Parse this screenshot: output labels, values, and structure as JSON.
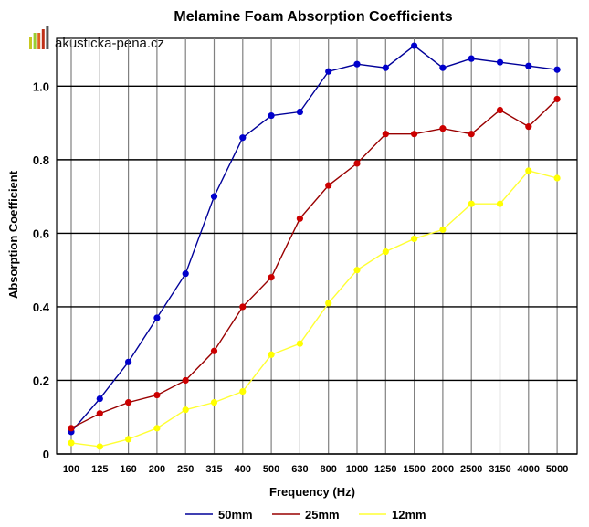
{
  "logo": {
    "text": "akusticka-pena.cz",
    "bar_colors": [
      "#c8c820",
      "#9acd32",
      "#e06020",
      "#c03018",
      "#555555"
    ]
  },
  "chart_data": {
    "type": "line",
    "title": "Melamine Foam Absorption Coefficients",
    "xlabel": "Frequency (Hz)",
    "ylabel": "Absorption Coefficient",
    "categories": [
      "100",
      "125",
      "160",
      "200",
      "250",
      "315",
      "400",
      "500",
      "630",
      "800",
      "1000",
      "1250",
      "1500",
      "2000",
      "2500",
      "3150",
      "4000",
      "5000"
    ],
    "ylim": [
      0,
      1.13
    ],
    "yticks": [
      0,
      0.2,
      0.4,
      0.6,
      0.8,
      1.0
    ],
    "ytick_labels": [
      "0",
      "0.2",
      "0.4",
      "0.6",
      "0.8",
      "1.0"
    ],
    "grid": true,
    "legend_position": "bottom",
    "series": [
      {
        "name": "50mm",
        "color": "#000099",
        "marker": "#0000cc",
        "values": [
          0.06,
          0.15,
          0.25,
          0.37,
          0.49,
          0.7,
          0.86,
          0.92,
          0.93,
          1.04,
          1.06,
          1.05,
          1.11,
          1.05,
          1.075,
          1.065,
          1.055,
          1.045
        ]
      },
      {
        "name": "25mm",
        "color": "#990000",
        "marker": "#cc0000",
        "values": [
          0.07,
          0.11,
          0.14,
          0.16,
          0.2,
          0.28,
          0.4,
          0.48,
          0.64,
          0.73,
          0.79,
          0.87,
          0.87,
          0.885,
          0.87,
          0.935,
          0.89,
          0.965
        ]
      },
      {
        "name": "12mm",
        "color": "#ffff33",
        "marker": "#ffff00",
        "values": [
          0.03,
          0.02,
          0.04,
          0.07,
          0.12,
          0.14,
          0.17,
          0.27,
          0.3,
          0.41,
          0.5,
          0.55,
          0.585,
          0.61,
          0.68,
          0.68,
          0.77,
          0.75
        ]
      }
    ]
  }
}
